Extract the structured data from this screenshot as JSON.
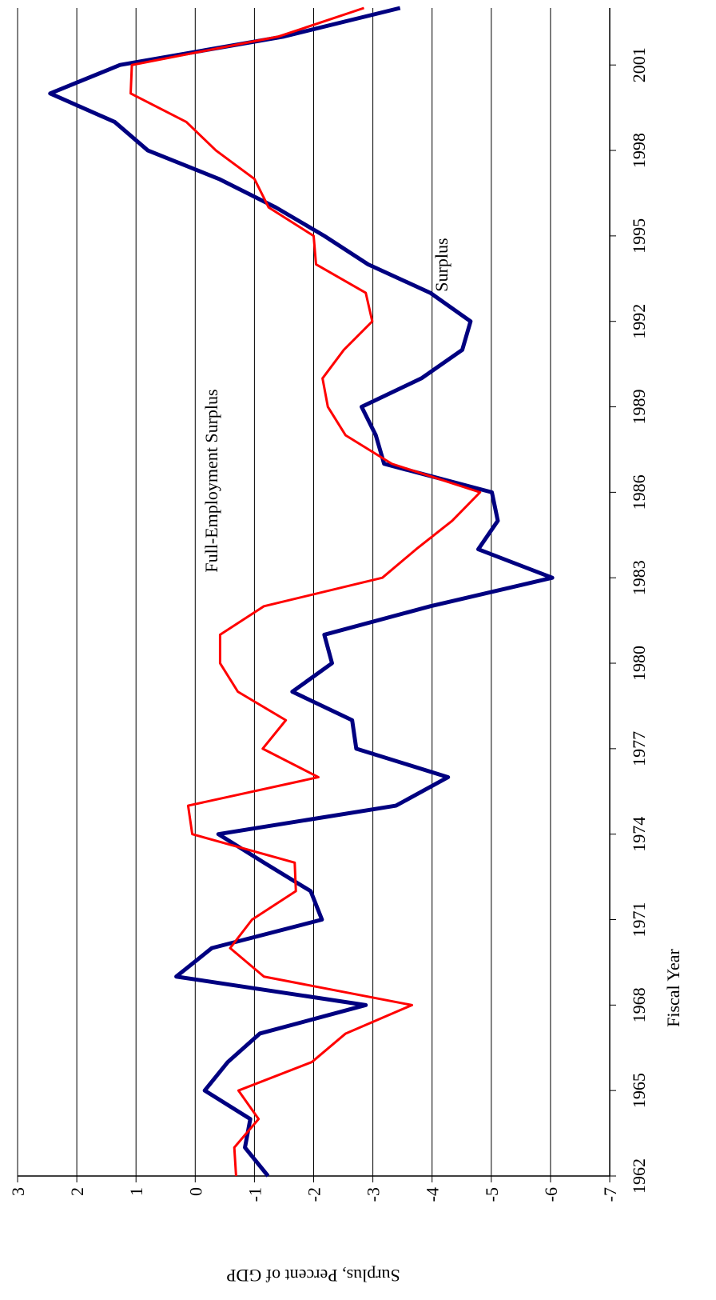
{
  "chart_data": {
    "type": "line",
    "x_label": "Fiscal Year",
    "y_label": "Surplus, Percent of GDP",
    "x": [
      1962,
      1963,
      1964,
      1965,
      1966,
      1967,
      1968,
      1969,
      1970,
      1971,
      1972,
      1973,
      1974,
      1975,
      1976,
      1977,
      1978,
      1979,
      1980,
      1981,
      1982,
      1983,
      1984,
      1985,
      1986,
      1987,
      1988,
      1989,
      1990,
      1991,
      1992,
      1993,
      1994,
      1995,
      1996,
      1997,
      1998,
      1999,
      2000,
      2001,
      2002,
      2003
    ],
    "series": [
      {
        "name": "Surplus",
        "color": "#000080",
        "values": [
          -1.23,
          -0.84,
          -0.93,
          -0.16,
          -0.55,
          -1.09,
          -2.88,
          0.32,
          -0.28,
          -2.14,
          -1.95,
          -1.16,
          -0.39,
          -3.39,
          -4.27,
          -2.72,
          -2.65,
          -1.64,
          -2.31,
          -2.18,
          -3.97,
          -6.03,
          -4.78,
          -5.11,
          -5.01,
          -3.19,
          -3.05,
          -2.81,
          -3.82,
          -4.51,
          -4.65,
          -3.97,
          -2.92,
          -2.18,
          -1.36,
          -0.4,
          0.8,
          1.36,
          2.45,
          1.27,
          -1.5,
          -3.46
        ]
      },
      {
        "name": "Full-Employment Surplus",
        "color": "#ff0000",
        "values": [
          -0.69,
          -0.66,
          -1.07,
          -0.73,
          -1.97,
          -2.54,
          -3.66,
          -1.16,
          -0.59,
          -0.96,
          -1.7,
          -1.68,
          0.05,
          0.12,
          -2.08,
          -1.14,
          -1.53,
          -0.72,
          -0.42,
          -0.42,
          -1.16,
          -3.16,
          -3.73,
          -4.34,
          -4.81,
          -3.32,
          -2.54,
          -2.24,
          -2.15,
          -2.51,
          -2.99,
          -2.88,
          -2.04,
          -2.0,
          -1.24,
          -1.0,
          -0.35,
          0.15,
          1.09,
          1.07,
          -1.41,
          -2.85
        ]
      }
    ],
    "xlim": [
      1962,
      2003
    ],
    "xticks": [
      1962,
      1965,
      1968,
      1971,
      1974,
      1977,
      1980,
      1983,
      1986,
      1989,
      1992,
      1995,
      1998,
      2001
    ],
    "ylim": [
      -7,
      3
    ],
    "yticks": [
      -7,
      -6,
      -5,
      -4,
      -3,
      -2,
      -1,
      0,
      1,
      2,
      3
    ],
    "grid": true,
    "rotation": -90
  }
}
